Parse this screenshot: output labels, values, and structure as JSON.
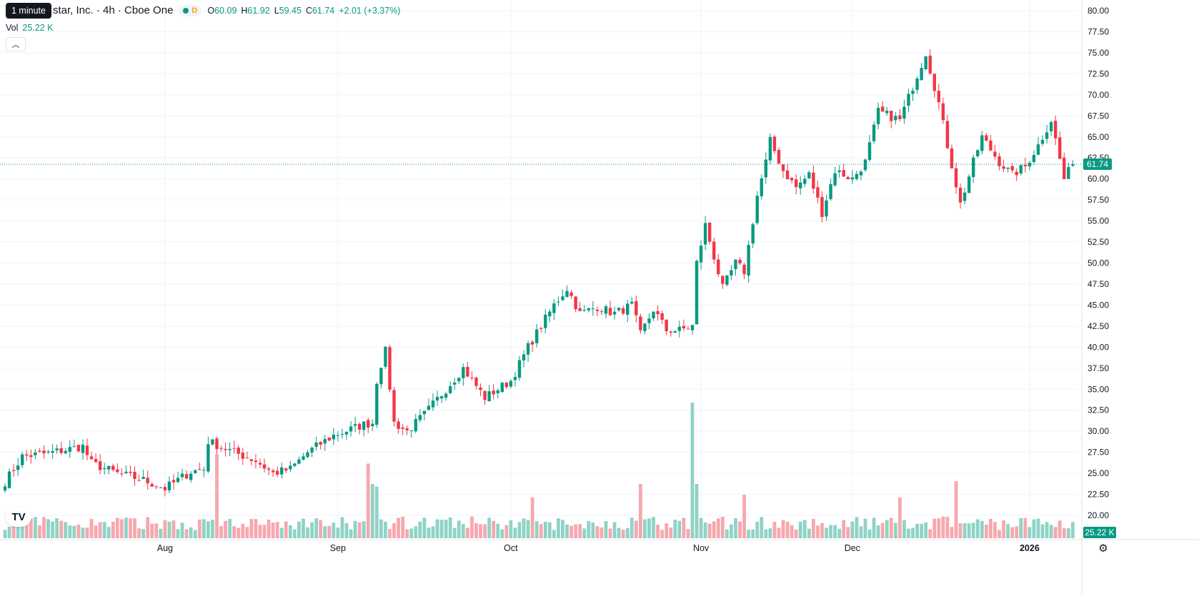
{
  "tooltip": "1 minute",
  "legend": {
    "title": "star, Inc. · 4h · Cboe One",
    "badge_letter": "D",
    "open_label": "O",
    "open": "60.09",
    "high_label": "H",
    "high": "61.92",
    "low_label": "L",
    "low": "59.45",
    "close_label": "C",
    "close": "61.74",
    "change": "+2.01 (+3.37%)",
    "volume_label": "Vol",
    "volume": "25.22 K"
  },
  "price_tag": "61.74",
  "volume_tag": "25.22 K",
  "icons": {
    "logo": "tradingview-logo-icon",
    "collapse": "chevron-up-icon",
    "settings": "gear-icon"
  },
  "colors": {
    "up": "#089981",
    "down": "#f23645",
    "up_vol": "#8fd3c6",
    "down_vol": "#f6a8ae"
  },
  "chart_data": {
    "type": "candlestick",
    "ylim": [
      17.5,
      81.25
    ],
    "y_ticks": [
      20.0,
      22.5,
      25.0,
      27.5,
      30.0,
      32.5,
      35.0,
      37.5,
      40.0,
      42.5,
      45.0,
      47.5,
      50.0,
      52.5,
      55.0,
      57.5,
      60.0,
      62.5,
      65.0,
      67.5,
      70.0,
      72.5,
      75.0,
      77.5,
      80.0
    ],
    "x_labels": [
      {
        "label": "Aug",
        "index": 37
      },
      {
        "label": "Sep",
        "index": 77
      },
      {
        "label": "Oct",
        "index": 117
      },
      {
        "label": "Nov",
        "index": 161
      },
      {
        "label": "Dec",
        "index": 196
      },
      {
        "label": "2026",
        "index": 237
      }
    ],
    "last_price": 61.74,
    "anchors": [
      [
        0,
        24.0
      ],
      [
        4,
        27.0
      ],
      [
        10,
        27.4
      ],
      [
        18,
        28.2
      ],
      [
        20,
        26.2
      ],
      [
        26,
        25.0
      ],
      [
        32,
        24.2
      ],
      [
        37,
        23.2
      ],
      [
        43,
        25.2
      ],
      [
        46,
        25.5
      ],
      [
        47,
        28.8
      ],
      [
        53,
        27.5
      ],
      [
        58,
        26.5
      ],
      [
        62,
        25.0
      ],
      [
        66,
        25.5
      ],
      [
        70,
        27.5
      ],
      [
        76,
        29.5
      ],
      [
        83,
        30.8
      ],
      [
        85,
        31.0
      ],
      [
        86,
        36.0
      ],
      [
        87,
        38.0
      ],
      [
        88,
        39.5
      ],
      [
        90,
        31.0
      ],
      [
        93,
        30.0
      ],
      [
        97,
        32.0
      ],
      [
        102,
        35.0
      ],
      [
        106,
        37.5
      ],
      [
        111,
        34.0
      ],
      [
        117,
        36.0
      ],
      [
        121,
        40.0
      ],
      [
        124,
        42.5
      ],
      [
        127,
        45.0
      ],
      [
        130,
        47.0
      ],
      [
        133,
        44.0
      ],
      [
        137,
        44.8
      ],
      [
        141,
        44.0
      ],
      [
        145,
        45.0
      ],
      [
        147,
        41.5
      ],
      [
        150,
        44.5
      ],
      [
        153,
        42.0
      ],
      [
        156,
        42.0
      ],
      [
        159,
        42.5
      ],
      [
        160,
        50.0
      ],
      [
        162,
        54.5
      ],
      [
        166,
        47.0
      ],
      [
        169,
        50.0
      ],
      [
        171,
        49.0
      ],
      [
        174,
        58.0
      ],
      [
        176,
        62.0
      ],
      [
        177,
        64.5
      ],
      [
        180,
        61.0
      ],
      [
        183,
        59.0
      ],
      [
        186,
        60.5
      ],
      [
        189,
        56.0
      ],
      [
        192,
        61.0
      ],
      [
        196,
        60.0
      ],
      [
        199,
        62.0
      ],
      [
        202,
        68.0
      ],
      [
        207,
        67.0
      ],
      [
        210,
        71.0
      ],
      [
        213,
        75.0
      ],
      [
        216,
        69.0
      ],
      [
        218,
        64.0
      ],
      [
        221,
        57.0
      ],
      [
        224,
        62.0
      ],
      [
        226,
        65.0
      ],
      [
        230,
        62.0
      ],
      [
        233,
        60.5
      ],
      [
        236,
        61.5
      ],
      [
        239,
        64.0
      ],
      [
        242,
        67.0
      ],
      [
        245,
        60.0
      ],
      [
        247,
        61.74
      ]
    ],
    "spikes": {
      "49": 0.62,
      "84": 0.55,
      "85": 0.4,
      "86": 0.38,
      "159": 1.0,
      "160": 0.4,
      "171": 0.32,
      "220": 0.42,
      "207": 0.3,
      "147": 0.4,
      "122": 0.3
    },
    "volume_max": 110,
    "n_bars": 248
  }
}
